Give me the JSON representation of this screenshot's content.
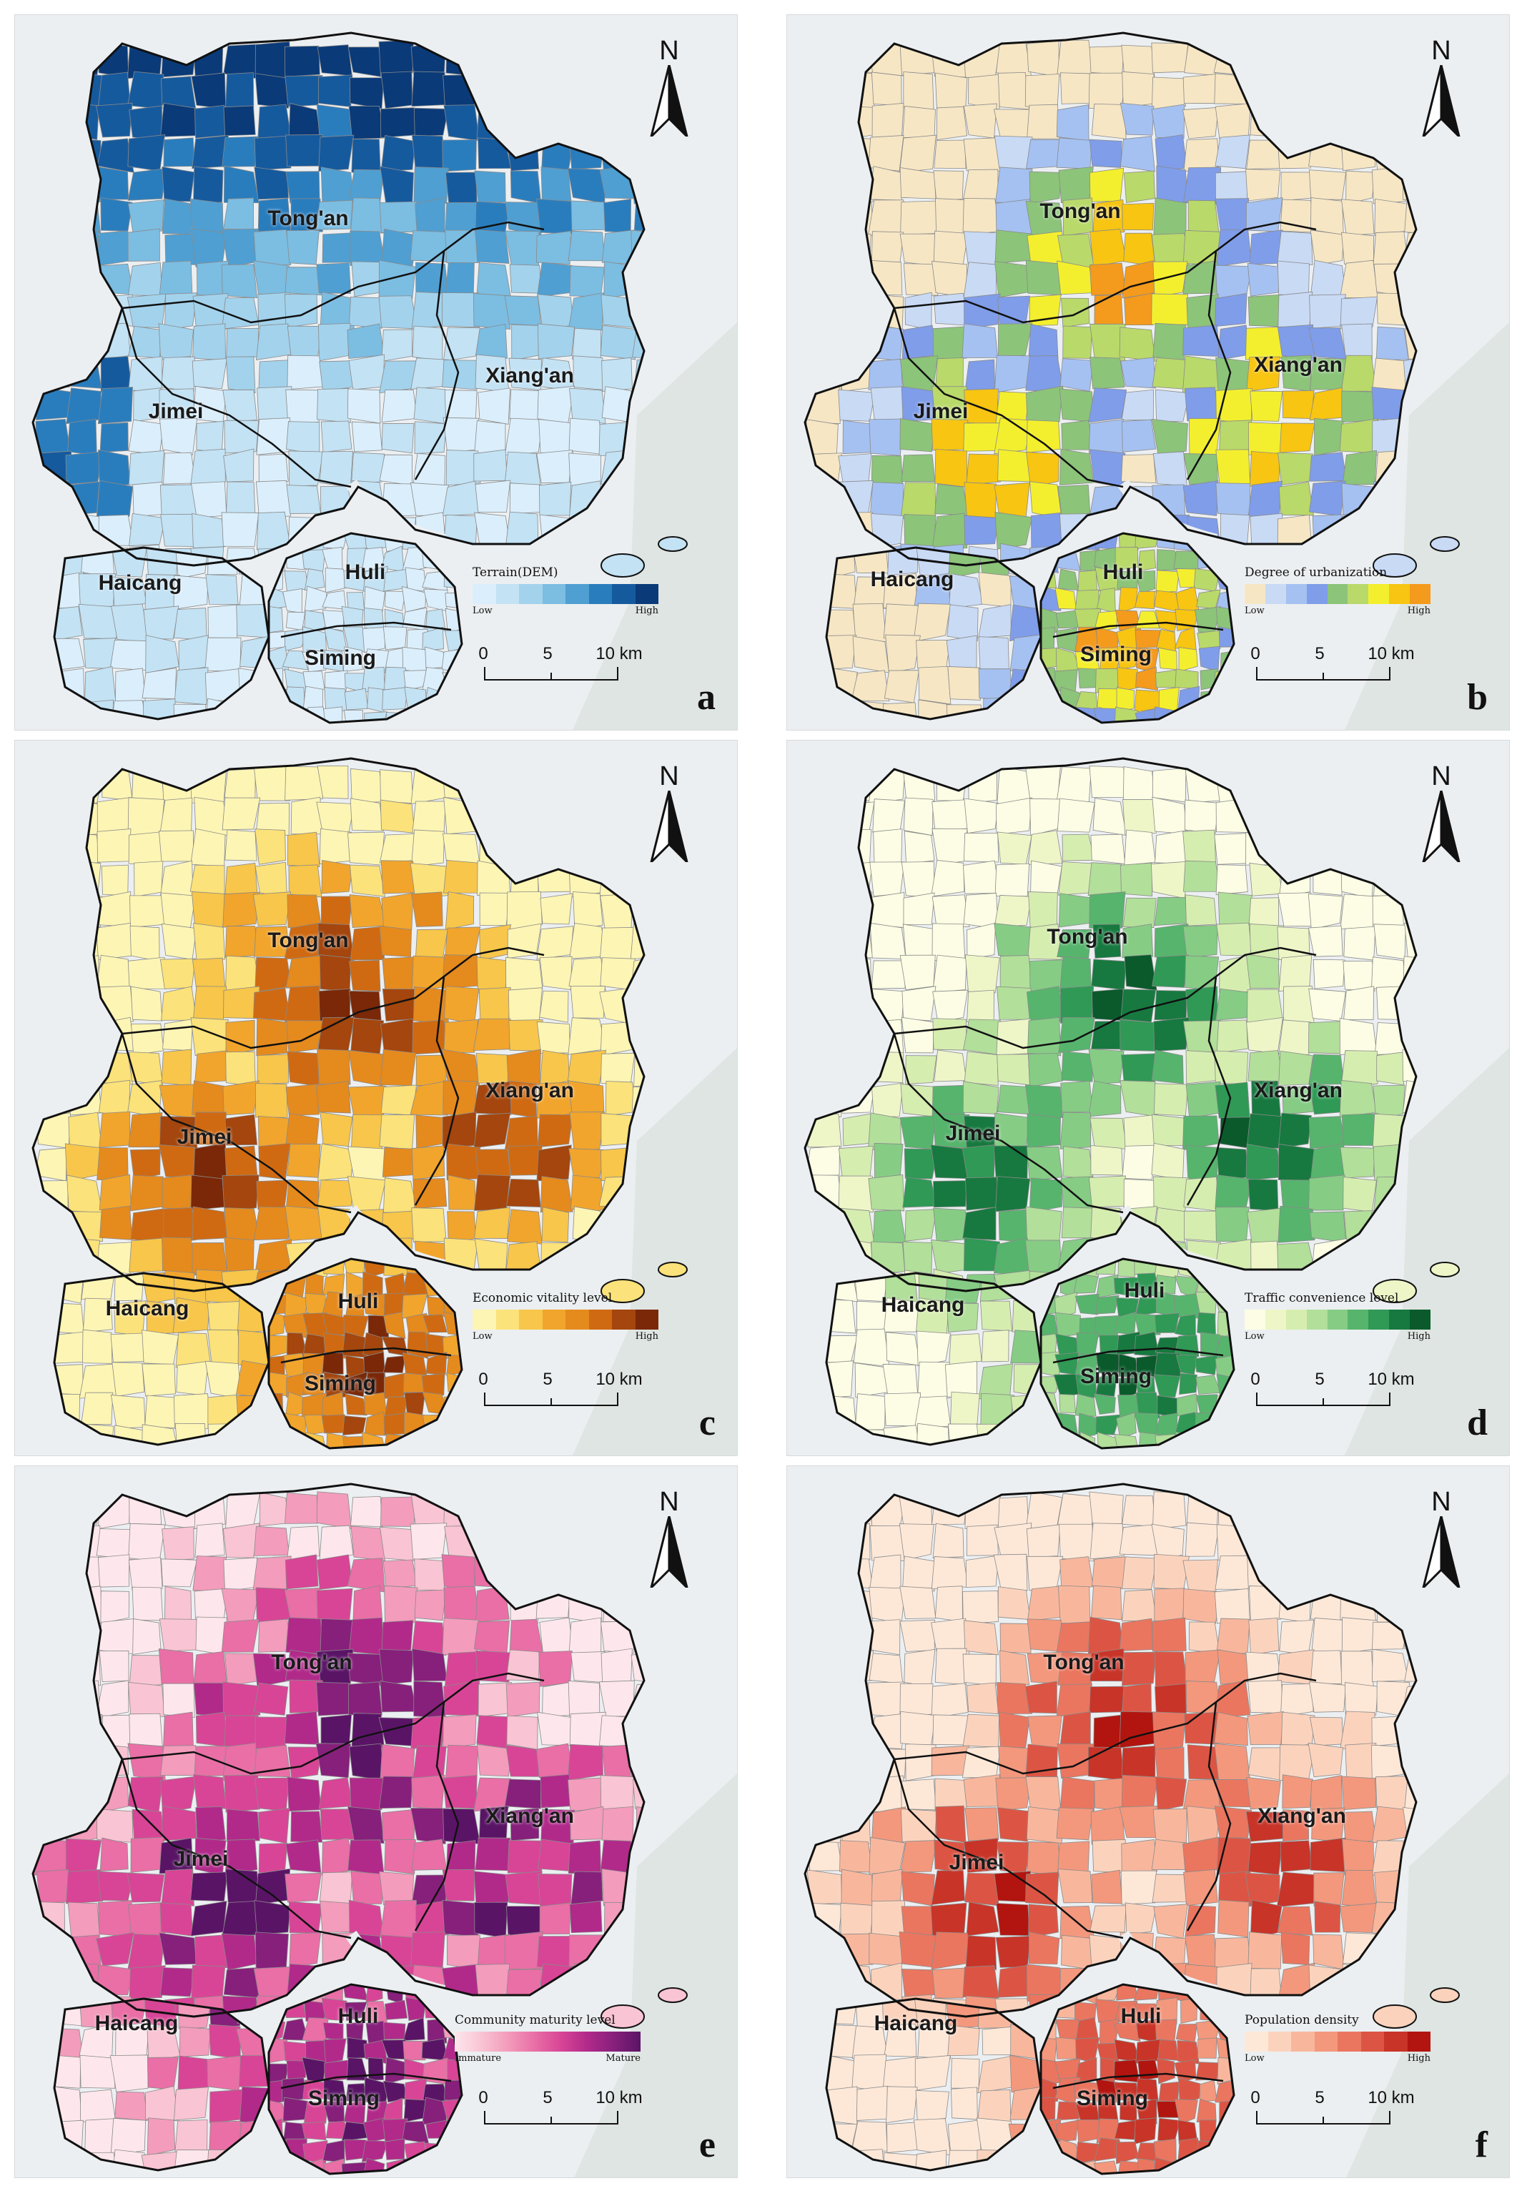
{
  "panels": [
    {
      "letter": "a",
      "legend_title": "Terrain(DEM)",
      "legend_low": "Low",
      "legend_high": "High",
      "palette": [
        "#dbeefb",
        "#c3e2f4",
        "#a3d2ec",
        "#7cbde2",
        "#4f9fd2",
        "#2a7dbd",
        "#165a9e",
        "#0a3a78"
      ],
      "base_color": "#f3f7fb",
      "gradient": "north"
    },
    {
      "letter": "b",
      "legend_title": "Degree of urbanization",
      "legend_low": "Low",
      "legend_high": "High",
      "palette": [
        "#f6e6c4",
        "#c9daf5",
        "#a5c1f1",
        "#7f9de9",
        "#8cc47a",
        "#b9d96a",
        "#f3ef2e",
        "#f7c512",
        "#f49a1c"
      ],
      "base_color": "#d2ddf0",
      "gradient": "urban"
    },
    {
      "letter": "c",
      "legend_title": "Economic vitality  level",
      "legend_low": "Low",
      "legend_high": "High",
      "palette": [
        "#fdf5b4",
        "#fbe27a",
        "#f7c64a",
        "#f1a52c",
        "#e58a1d",
        "#cf6a12",
        "#a4460d",
        "#7a2808"
      ],
      "base_color": "#fbe776",
      "gradient": "urban"
    },
    {
      "letter": "d",
      "legend_title": "Traffic convenience level",
      "legend_low": "Low",
      "legend_high": "High",
      "palette": [
        "#fcfde4",
        "#eef6c8",
        "#d6edb0",
        "#b2df9a",
        "#86cc85",
        "#57b46d",
        "#2f9955",
        "#17793f",
        "#0a5a2c"
      ],
      "base_color": "#fafce5",
      "gradient": "urban"
    },
    {
      "letter": "e",
      "legend_title": "Community maturity level",
      "legend_low": "Immature",
      "legend_high": "Mature",
      "palette": [
        "#fde7ec",
        "#f9c4d3",
        "#f39cbc",
        "#e96fa6",
        "#d84596",
        "#b12a8a",
        "#86207b",
        "#5a1466"
      ],
      "base_color": "#f7c9d6",
      "gradient": "mixed"
    },
    {
      "letter": "f",
      "legend_title": "Population density",
      "legend_low": "Low",
      "legend_high": "High",
      "palette": [
        "#fde8d8",
        "#fbd3bd",
        "#f8b79d",
        "#f3987d",
        "#ea7660",
        "#dc5544",
        "#c83428",
        "#b2150f"
      ],
      "base_color": "#fce6d4",
      "gradient": "urban"
    }
  ],
  "districts": [
    "Tong'an",
    "Xiang'an",
    "Jimei",
    "Haicang",
    "Huli",
    "Siming"
  ],
  "north_label": "N",
  "scale_ticks": [
    "0",
    "5",
    "10 km"
  ]
}
